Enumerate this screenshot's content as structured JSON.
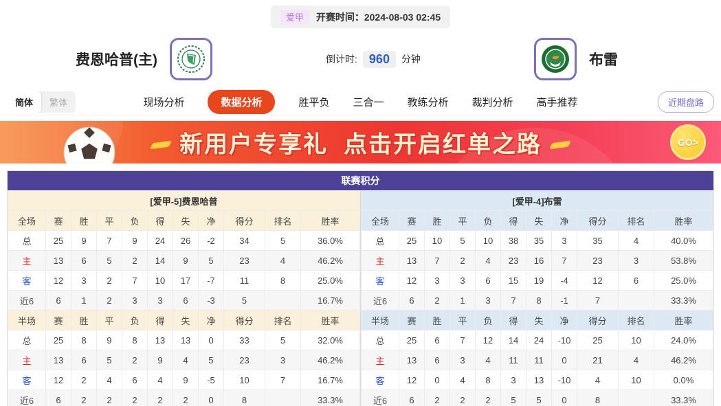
{
  "header": {
    "league_badge": "爱甲",
    "start_label": "开赛时间：",
    "start_time": "2024-08-03 02:45",
    "home_team": "费恩哈普(主)",
    "away_team": "布雷",
    "countdown_label": "倒计时:",
    "countdown_value": "960",
    "countdown_unit": "分钟"
  },
  "nav": {
    "lang": [
      {
        "label": "简体",
        "active": true
      },
      {
        "label": "繁体",
        "active": false
      }
    ],
    "tabs": [
      {
        "label": "现场分析",
        "active": false
      },
      {
        "label": "数据分析",
        "active": true
      },
      {
        "label": "胜平负",
        "active": false
      },
      {
        "label": "三合一",
        "active": false
      },
      {
        "label": "教练分析",
        "active": false
      },
      {
        "label": "裁判分析",
        "active": false
      },
      {
        "label": "高手推荐",
        "active": false
      }
    ],
    "recent_button": "近期盘路"
  },
  "banner": {
    "title": "新用户专享礼",
    "subtitle": "点击开启红单之路",
    "go_label": "GO>"
  },
  "colors": {
    "accent_red": "#e8471d",
    "title_purple": "#4e4296",
    "home_theme": "#fbf1db",
    "away_theme": "#dce8f4",
    "home_row_label": "#d9302c",
    "away_row_label": "#2753cd"
  },
  "league_table": {
    "title": "联赛积分",
    "columns": [
      "赛",
      "胜",
      "平",
      "负",
      "得",
      "失",
      "净",
      "得分",
      "排名",
      "胜率"
    ],
    "sides": [
      {
        "header": "[爱甲-5]费恩哈普",
        "theme": "cream",
        "sections": [
          {
            "scope": "全场",
            "rows": [
              {
                "label": "总",
                "type": "total",
                "cells": [
                  "25",
                  "9",
                  "7",
                  "9",
                  "24",
                  "26",
                  "-2",
                  "34",
                  "5",
                  "36.0%"
                ]
              },
              {
                "label": "主",
                "type": "home",
                "cells": [
                  "13",
                  "6",
                  "5",
                  "2",
                  "14",
                  "9",
                  "5",
                  "23",
                  "4",
                  "46.2%"
                ]
              },
              {
                "label": "客",
                "type": "away",
                "cells": [
                  "12",
                  "3",
                  "2",
                  "7",
                  "10",
                  "17",
                  "-7",
                  "11",
                  "8",
                  "25.0%"
                ]
              },
              {
                "label": "近6",
                "type": "recent",
                "cells": [
                  "6",
                  "1",
                  "2",
                  "3",
                  "3",
                  "6",
                  "-3",
                  "5",
                  "",
                  "16.7%"
                ]
              }
            ]
          },
          {
            "scope": "半场",
            "rows": [
              {
                "label": "总",
                "type": "total",
                "cells": [
                  "25",
                  "8",
                  "9",
                  "8",
                  "13",
                  "13",
                  "0",
                  "33",
                  "5",
                  "32.0%"
                ]
              },
              {
                "label": "主",
                "type": "home",
                "cells": [
                  "13",
                  "6",
                  "5",
                  "2",
                  "9",
                  "4",
                  "5",
                  "23",
                  "3",
                  "46.2%"
                ]
              },
              {
                "label": "客",
                "type": "away",
                "cells": [
                  "12",
                  "2",
                  "4",
                  "6",
                  "4",
                  "9",
                  "-5",
                  "10",
                  "7",
                  "16.7%"
                ]
              },
              {
                "label": "近6",
                "type": "recent",
                "cells": [
                  "6",
                  "2",
                  "2",
                  "2",
                  "2",
                  "2",
                  "0",
                  "8",
                  "",
                  "33.3%"
                ]
              }
            ]
          }
        ]
      },
      {
        "header": "[爱甲-4]布雷",
        "theme": "blue",
        "sections": [
          {
            "scope": "全场",
            "rows": [
              {
                "label": "总",
                "type": "total",
                "cells": [
                  "25",
                  "10",
                  "5",
                  "10",
                  "38",
                  "35",
                  "3",
                  "35",
                  "4",
                  "40.0%"
                ]
              },
              {
                "label": "主",
                "type": "home",
                "cells": [
                  "13",
                  "7",
                  "2",
                  "4",
                  "23",
                  "16",
                  "7",
                  "23",
                  "3",
                  "53.8%"
                ]
              },
              {
                "label": "客",
                "type": "away",
                "cells": [
                  "12",
                  "3",
                  "3",
                  "6",
                  "15",
                  "19",
                  "-4",
                  "12",
                  "6",
                  "25.0%"
                ]
              },
              {
                "label": "近6",
                "type": "recent",
                "cells": [
                  "6",
                  "2",
                  "1",
                  "3",
                  "7",
                  "8",
                  "-1",
                  "7",
                  "",
                  "33.3%"
                ]
              }
            ]
          },
          {
            "scope": "半场",
            "rows": [
              {
                "label": "总",
                "type": "total",
                "cells": [
                  "25",
                  "6",
                  "7",
                  "12",
                  "14",
                  "24",
                  "-10",
                  "25",
                  "10",
                  "24.0%"
                ]
              },
              {
                "label": "主",
                "type": "home",
                "cells": [
                  "13",
                  "6",
                  "3",
                  "4",
                  "11",
                  "11",
                  "0",
                  "21",
                  "4",
                  "46.2%"
                ]
              },
              {
                "label": "客",
                "type": "away",
                "cells": [
                  "12",
                  "0",
                  "4",
                  "8",
                  "3",
                  "13",
                  "-10",
                  "4",
                  "10",
                  "0.0%"
                ]
              },
              {
                "label": "近6",
                "type": "recent",
                "cells": [
                  "6",
                  "2",
                  "2",
                  "2",
                  "5",
                  "5",
                  "0",
                  "8",
                  "",
                  "33.3%"
                ]
              }
            ]
          }
        ]
      }
    ]
  }
}
